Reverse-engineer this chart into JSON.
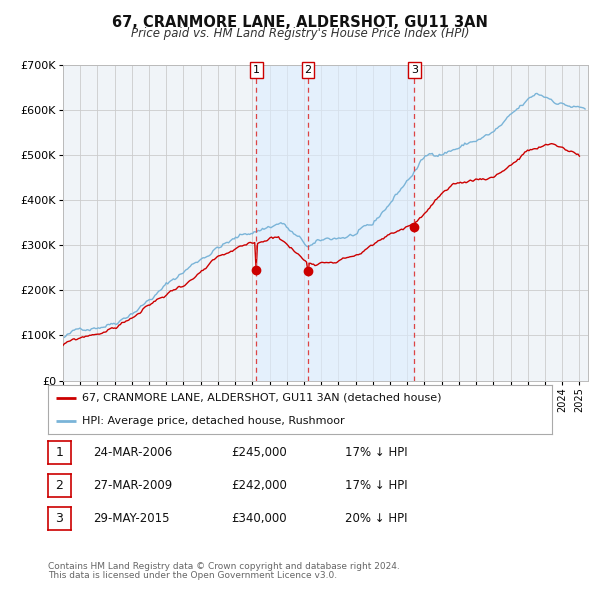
{
  "title": "67, CRANMORE LANE, ALDERSHOT, GU11 3AN",
  "subtitle": "Price paid vs. HM Land Registry's House Price Index (HPI)",
  "hpi_label": "HPI: Average price, detached house, Rushmoor",
  "price_label": "67, CRANMORE LANE, ALDERSHOT, GU11 3AN (detached house)",
  "hpi_color": "#7ab4d8",
  "price_color": "#cc0000",
  "marker_color": "#cc0000",
  "vline_color": "#dd4444",
  "shade_color": "#ddeeff",
  "ylim": [
    0,
    700000
  ],
  "yticks": [
    0,
    100000,
    200000,
    300000,
    400000,
    500000,
    600000,
    700000
  ],
  "ytick_labels": [
    "£0",
    "£100K",
    "£200K",
    "£300K",
    "£400K",
    "£500K",
    "£600K",
    "£700K"
  ],
  "xlim_start": 1995.0,
  "xlim_end": 2025.5,
  "sale_dates": [
    2006.23,
    2009.24,
    2015.41
  ],
  "sale_prices": [
    245000,
    242000,
    340000
  ],
  "sale_labels": [
    "1",
    "2",
    "3"
  ],
  "table_rows": [
    [
      "1",
      "24-MAR-2006",
      "£245,000",
      "17% ↓ HPI"
    ],
    [
      "2",
      "27-MAR-2009",
      "£242,000",
      "17% ↓ HPI"
    ],
    [
      "3",
      "29-MAY-2015",
      "£340,000",
      "20% ↓ HPI"
    ]
  ],
  "footnote1": "Contains HM Land Registry data © Crown copyright and database right 2024.",
  "footnote2": "This data is licensed under the Open Government Licence v3.0.",
  "bg_color": "#f0f4f8",
  "grid_color": "#cccccc"
}
